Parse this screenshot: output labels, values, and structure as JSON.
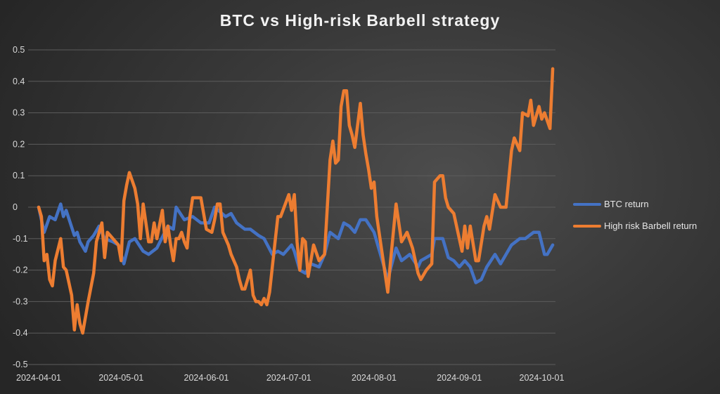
{
  "chart_data": {
    "type": "line",
    "title": "BTC vs High-risk Barbell strategy",
    "xlabel": "",
    "ylabel": "",
    "ylim": [
      -0.5,
      0.5
    ],
    "y_ticks": [
      "0.5",
      "0.4",
      "0.3",
      "0.2",
      "0.1",
      "0",
      "-0.1",
      "-0.2",
      "-0.3",
      "-0.4",
      "-0.5"
    ],
    "x_ticks": [
      "2024-04-01",
      "2024-05-01",
      "2024-06-01",
      "2024-07-01",
      "2024-08-01",
      "2024-09-01",
      "2024-10-01"
    ],
    "grid": "horizontal",
    "legend_position": "right",
    "series": [
      {
        "name": "BTC return",
        "color": "#4472c4",
        "points": [
          [
            "2024-04-01",
            0
          ],
          [
            "2024-04-03",
            -0.08
          ],
          [
            "2024-04-05",
            -0.03
          ],
          [
            "2024-04-07",
            -0.04
          ],
          [
            "2024-04-09",
            0.01
          ],
          [
            "2024-04-10",
            -0.03
          ],
          [
            "2024-04-11",
            -0.01
          ],
          [
            "2024-04-14",
            -0.09
          ],
          [
            "2024-04-15",
            -0.08
          ],
          [
            "2024-04-16",
            -0.11
          ],
          [
            "2024-04-18",
            -0.14
          ],
          [
            "2024-04-19",
            -0.11
          ],
          [
            "2024-04-21",
            -0.09
          ],
          [
            "2024-04-23",
            -0.06
          ],
          [
            "2024-04-25",
            -0.1
          ],
          [
            "2024-04-28",
            -0.11
          ],
          [
            "2024-04-30",
            -0.12
          ],
          [
            "2024-05-02",
            -0.18
          ],
          [
            "2024-05-04",
            -0.11
          ],
          [
            "2024-05-06",
            -0.1
          ],
          [
            "2024-05-09",
            -0.14
          ],
          [
            "2024-05-11",
            -0.15
          ],
          [
            "2024-05-14",
            -0.13
          ],
          [
            "2024-05-18",
            -0.06
          ],
          [
            "2024-05-20",
            -0.07
          ],
          [
            "2024-05-21",
            0.0
          ],
          [
            "2024-05-24",
            -0.04
          ],
          [
            "2024-05-27",
            -0.03
          ],
          [
            "2024-05-30",
            -0.05
          ],
          [
            "2024-06-02",
            -0.05
          ],
          [
            "2024-06-04",
            0.0
          ],
          [
            "2024-06-08",
            -0.03
          ],
          [
            "2024-06-10",
            -0.02
          ],
          [
            "2024-06-12",
            -0.05
          ],
          [
            "2024-06-15",
            -0.07
          ],
          [
            "2024-06-17",
            -0.07
          ],
          [
            "2024-06-20",
            -0.09
          ],
          [
            "2024-06-22",
            -0.1
          ],
          [
            "2024-06-25",
            -0.15
          ],
          [
            "2024-06-27",
            -0.14
          ],
          [
            "2024-06-29",
            -0.15
          ],
          [
            "2024-07-02",
            -0.12
          ],
          [
            "2024-07-03",
            -0.14
          ],
          [
            "2024-07-05",
            -0.2
          ],
          [
            "2024-07-07",
            -0.21
          ],
          [
            "2024-07-09",
            -0.18
          ],
          [
            "2024-07-12",
            -0.19
          ],
          [
            "2024-07-14",
            -0.15
          ],
          [
            "2024-07-16",
            -0.08
          ],
          [
            "2024-07-19",
            -0.1
          ],
          [
            "2024-07-21",
            -0.05
          ],
          [
            "2024-07-23",
            -0.06
          ],
          [
            "2024-07-25",
            -0.08
          ],
          [
            "2024-07-27",
            -0.04
          ],
          [
            "2024-07-29",
            -0.04
          ],
          [
            "2024-08-01",
            -0.08
          ],
          [
            "2024-08-03",
            -0.14
          ],
          [
            "2024-08-06",
            -0.23
          ],
          [
            "2024-08-09",
            -0.13
          ],
          [
            "2024-08-11",
            -0.17
          ],
          [
            "2024-08-14",
            -0.15
          ],
          [
            "2024-08-17",
            -0.19
          ],
          [
            "2024-08-18",
            -0.17
          ],
          [
            "2024-08-20",
            -0.16
          ],
          [
            "2024-08-22",
            -0.15
          ],
          [
            "2024-08-23",
            -0.1
          ],
          [
            "2024-08-26",
            -0.1
          ],
          [
            "2024-08-28",
            -0.16
          ],
          [
            "2024-08-30",
            -0.17
          ],
          [
            "2024-09-01",
            -0.19
          ],
          [
            "2024-09-03",
            -0.17
          ],
          [
            "2024-09-05",
            -0.19
          ],
          [
            "2024-09-07",
            -0.24
          ],
          [
            "2024-09-09",
            -0.23
          ],
          [
            "2024-09-11",
            -0.19
          ],
          [
            "2024-09-14",
            -0.15
          ],
          [
            "2024-09-16",
            -0.18
          ],
          [
            "2024-09-20",
            -0.12
          ],
          [
            "2024-09-23",
            -0.1
          ],
          [
            "2024-09-25",
            -0.1
          ],
          [
            "2024-09-28",
            -0.08
          ],
          [
            "2024-09-30",
            -0.08
          ],
          [
            "2024-10-02",
            -0.15
          ],
          [
            "2024-10-03",
            -0.15
          ],
          [
            "2024-10-05",
            -0.12
          ]
        ]
      },
      {
        "name": "High risk Barbell return",
        "color": "#ed7d31",
        "points": [
          [
            "2024-04-01",
            0
          ],
          [
            "2024-04-02",
            -0.03
          ],
          [
            "2024-04-03",
            -0.17
          ],
          [
            "2024-04-04",
            -0.15
          ],
          [
            "2024-04-05",
            -0.23
          ],
          [
            "2024-04-06",
            -0.25
          ],
          [
            "2024-04-07",
            -0.17
          ],
          [
            "2024-04-09",
            -0.1
          ],
          [
            "2024-04-10",
            -0.19
          ],
          [
            "2024-04-11",
            -0.2
          ],
          [
            "2024-04-13",
            -0.28
          ],
          [
            "2024-04-14",
            -0.39
          ],
          [
            "2024-04-15",
            -0.31
          ],
          [
            "2024-04-16",
            -0.37
          ],
          [
            "2024-04-17",
            -0.4
          ],
          [
            "2024-04-19",
            -0.3
          ],
          [
            "2024-04-21",
            -0.21
          ],
          [
            "2024-04-22",
            -0.11
          ],
          [
            "2024-04-24",
            -0.05
          ],
          [
            "2024-04-25",
            -0.16
          ],
          [
            "2024-04-26",
            -0.08
          ],
          [
            "2024-04-27",
            -0.09
          ],
          [
            "2024-04-29",
            -0.11
          ],
          [
            "2024-04-30",
            -0.12
          ],
          [
            "2024-05-01",
            -0.17
          ],
          [
            "2024-05-02",
            0.02
          ],
          [
            "2024-05-03",
            0.07
          ],
          [
            "2024-05-04",
            0.11
          ],
          [
            "2024-05-06",
            0.06
          ],
          [
            "2024-05-07",
            0.01
          ],
          [
            "2024-05-08",
            -0.1
          ],
          [
            "2024-05-09",
            0.01
          ],
          [
            "2024-05-10",
            -0.05
          ],
          [
            "2024-05-11",
            -0.11
          ],
          [
            "2024-05-12",
            -0.11
          ],
          [
            "2024-05-13",
            -0.05
          ],
          [
            "2024-05-14",
            -0.1
          ],
          [
            "2024-05-16",
            -0.01
          ],
          [
            "2024-05-17",
            -0.11
          ],
          [
            "2024-05-18",
            -0.06
          ],
          [
            "2024-05-19",
            -0.12
          ],
          [
            "2024-05-20",
            -0.17
          ],
          [
            "2024-05-21",
            -0.1
          ],
          [
            "2024-05-22",
            -0.1
          ],
          [
            "2024-05-23",
            -0.08
          ],
          [
            "2024-05-24",
            -0.11
          ],
          [
            "2024-05-25",
            -0.13
          ],
          [
            "2024-05-26",
            -0.03
          ],
          [
            "2024-05-27",
            0.03
          ],
          [
            "2024-05-29",
            0.03
          ],
          [
            "2024-05-30",
            0.03
          ],
          [
            "2024-05-31",
            -0.02
          ],
          [
            "2024-06-01",
            -0.07
          ],
          [
            "2024-06-03",
            -0.08
          ],
          [
            "2024-06-04",
            -0.04
          ],
          [
            "2024-06-05",
            0.01
          ],
          [
            "2024-06-06",
            0.01
          ],
          [
            "2024-06-07",
            -0.08
          ],
          [
            "2024-06-09",
            -0.12
          ],
          [
            "2024-06-10",
            -0.15
          ],
          [
            "2024-06-12",
            -0.19
          ],
          [
            "2024-06-13",
            -0.23
          ],
          [
            "2024-06-14",
            -0.26
          ],
          [
            "2024-06-15",
            -0.26
          ],
          [
            "2024-06-17",
            -0.2
          ],
          [
            "2024-06-18",
            -0.28
          ],
          [
            "2024-06-19",
            -0.3
          ],
          [
            "2024-06-20",
            -0.3
          ],
          [
            "2024-06-21",
            -0.31
          ],
          [
            "2024-06-22",
            -0.29
          ],
          [
            "2024-06-23",
            -0.31
          ],
          [
            "2024-06-24",
            -0.27
          ],
          [
            "2024-06-26",
            -0.11
          ],
          [
            "2024-06-27",
            -0.03
          ],
          [
            "2024-06-28",
            -0.03
          ],
          [
            "2024-07-01",
            0.04
          ],
          [
            "2024-07-02",
            -0.01
          ],
          [
            "2024-07-03",
            0.04
          ],
          [
            "2024-07-04",
            -0.11
          ],
          [
            "2024-07-05",
            -0.2
          ],
          [
            "2024-07-06",
            -0.1
          ],
          [
            "2024-07-07",
            -0.11
          ],
          [
            "2024-07-08",
            -0.22
          ],
          [
            "2024-07-10",
            -0.12
          ],
          [
            "2024-07-12",
            -0.17
          ],
          [
            "2024-07-14",
            -0.15
          ],
          [
            "2024-07-15",
            0.0
          ],
          [
            "2024-07-16",
            0.15
          ],
          [
            "2024-07-17",
            0.21
          ],
          [
            "2024-07-18",
            0.14
          ],
          [
            "2024-07-19",
            0.15
          ],
          [
            "2024-07-20",
            0.32
          ],
          [
            "2024-07-21",
            0.37
          ],
          [
            "2024-07-22",
            0.37
          ],
          [
            "2024-07-23",
            0.26
          ],
          [
            "2024-07-24",
            0.23
          ],
          [
            "2024-07-25",
            0.19
          ],
          [
            "2024-07-27",
            0.33
          ],
          [
            "2024-07-28",
            0.23
          ],
          [
            "2024-07-29",
            0.17
          ],
          [
            "2024-07-30",
            0.12
          ],
          [
            "2024-07-31",
            0.06
          ],
          [
            "2024-08-01",
            0.08
          ],
          [
            "2024-08-02",
            -0.03
          ],
          [
            "2024-08-04",
            -0.15
          ],
          [
            "2024-08-06",
            -0.27
          ],
          [
            "2024-08-07",
            -0.17
          ],
          [
            "2024-08-09",
            0.01
          ],
          [
            "2024-08-10",
            -0.05
          ],
          [
            "2024-08-11",
            -0.11
          ],
          [
            "2024-08-13",
            -0.08
          ],
          [
            "2024-08-15",
            -0.13
          ],
          [
            "2024-08-17",
            -0.21
          ],
          [
            "2024-08-18",
            -0.23
          ],
          [
            "2024-08-20",
            -0.2
          ],
          [
            "2024-08-22",
            -0.18
          ],
          [
            "2024-08-23",
            0.08
          ],
          [
            "2024-08-25",
            0.1
          ],
          [
            "2024-08-26",
            0.1
          ],
          [
            "2024-08-27",
            0.03
          ],
          [
            "2024-08-28",
            0.0
          ],
          [
            "2024-08-30",
            -0.02
          ],
          [
            "2024-09-02",
            -0.14
          ],
          [
            "2024-09-03",
            -0.06
          ],
          [
            "2024-09-04",
            -0.13
          ],
          [
            "2024-09-05",
            -0.06
          ],
          [
            "2024-09-07",
            -0.17
          ],
          [
            "2024-09-08",
            -0.17
          ],
          [
            "2024-09-10",
            -0.06
          ],
          [
            "2024-09-11",
            -0.03
          ],
          [
            "2024-09-12",
            -0.07
          ],
          [
            "2024-09-14",
            0.04
          ],
          [
            "2024-09-16",
            0.0
          ],
          [
            "2024-09-18",
            0.0
          ],
          [
            "2024-09-20",
            0.18
          ],
          [
            "2024-09-21",
            0.22
          ],
          [
            "2024-09-23",
            0.18
          ],
          [
            "2024-09-24",
            0.3
          ],
          [
            "2024-09-26",
            0.29
          ],
          [
            "2024-09-27",
            0.34
          ],
          [
            "2024-09-28",
            0.26
          ],
          [
            "2024-09-30",
            0.32
          ],
          [
            "2024-10-01",
            0.28
          ],
          [
            "2024-10-02",
            0.3
          ],
          [
            "2024-10-04",
            0.25
          ],
          [
            "2024-10-05",
            0.44
          ]
        ]
      }
    ]
  }
}
